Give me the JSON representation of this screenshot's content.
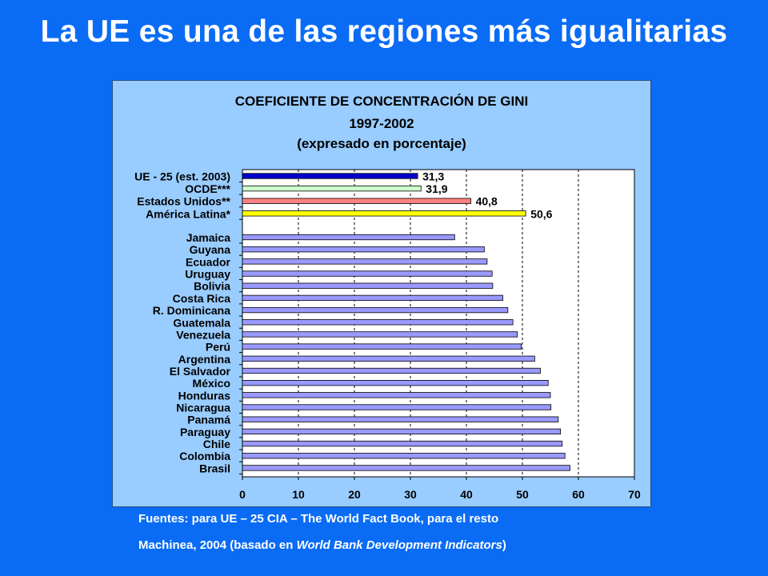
{
  "title": "La UE es una de las regiones más igualitarias",
  "colors": {
    "background": "#0A6CF5",
    "panel": "#99CCFF",
    "plot_area": "#FFFFFF",
    "bar_default": "#9999FF",
    "bar_ue": "#0000CC",
    "bar_ocde": "#CCFFCC",
    "bar_eeuu": "#FF8080",
    "bar_al": "#FFFF00"
  },
  "chart_data": {
    "type": "bar",
    "orientation": "horizontal",
    "title": "COEFICIENTE DE CONCENTRACIÓN DE GINI",
    "subtitle": "1997-2002",
    "subtitle2": "(expresado en porcentaje)",
    "xlim": [
      0,
      70
    ],
    "xticks": [
      "0",
      "10",
      "20",
      "30",
      "40",
      "50",
      "60",
      "70"
    ],
    "grid": "vertical dashed",
    "groups": [
      {
        "categories": [
          "UE - 25 (est. 2003)",
          "OCDE***",
          "Estados Unidos**",
          "América Latina*"
        ],
        "values": [
          31.3,
          31.9,
          40.8,
          50.6
        ],
        "value_labels": [
          "31,3",
          "31,9",
          "40,8",
          "50,6"
        ],
        "colors": [
          "#0000CC",
          "#CCFFCC",
          "#FF8080",
          "#FFFF00"
        ]
      },
      {
        "categories": [
          "Jamaica",
          "Guyana",
          "Ecuador",
          "Uruguay",
          "Bolivia",
          "Costa Rica",
          "R. Dominicana",
          "Guatemala",
          "Venezuela",
          "Perú",
          "Argentina",
          "El Salvador",
          "México",
          "Honduras",
          "Nicaragua",
          "Panamá",
          "Paraguay",
          "Chile",
          "Colombia",
          "Brasil"
        ],
        "values": [
          37.9,
          43.2,
          43.7,
          44.6,
          44.7,
          46.5,
          47.4,
          48.3,
          49.1,
          49.8,
          52.2,
          53.2,
          54.6,
          55.0,
          55.1,
          56.4,
          56.8,
          57.1,
          57.6,
          58.5
        ]
      }
    ]
  },
  "source": {
    "line1": "Fuentes: para UE – 25 CIA – The World Fact Book, para el resto",
    "line2_prefix": "Machinea, 2004 (basado en ",
    "line2_italic": "World Bank Development Indicators",
    "line2_suffix": ")"
  }
}
